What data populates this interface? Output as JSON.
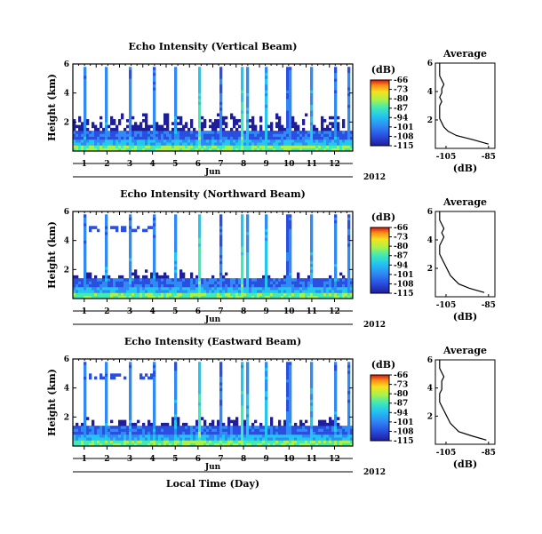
{
  "chart_data": [
    {
      "type": "heatmap",
      "title": "Echo Intensity (Vertical Beam)",
      "ylabel": "Height (km)",
      "ylim": [
        0,
        6
      ],
      "yticks": [
        "6",
        "4",
        "2"
      ],
      "x_day_ticks": [
        "1",
        "2",
        "3",
        "4",
        "5",
        "6",
        "7",
        "8",
        "9",
        "10",
        "11",
        "12"
      ],
      "month": "Jun",
      "year": "2012",
      "colorbar": {
        "title": "(dB)",
        "ticks": [
          "-66",
          "-73",
          "-80",
          "-87",
          "-94",
          "-101",
          "-108",
          "-115"
        ],
        "range": [
          -115,
          -66
        ]
      },
      "profile": {
        "title": "Average",
        "xlabel": "(dB)",
        "xticks": [
          "-105",
          "-85"
        ],
        "yticks": [
          "6",
          "4",
          "2"
        ],
        "height_km": [
          0.3,
          0.6,
          0.9,
          1.2,
          1.5,
          1.8,
          2.1,
          2.4,
          2.7,
          3.0,
          3.3,
          3.6,
          3.9,
          4.2,
          4.5,
          4.8,
          5.1,
          5.4,
          5.7,
          6.0
        ],
        "db": [
          -85,
          -92,
          -100,
          -104,
          -106,
          -107,
          -108,
          -108,
          -108,
          -108,
          -107,
          -108,
          -107,
          -107,
          -106,
          -107,
          -108,
          -108,
          -108,
          -108
        ]
      }
    },
    {
      "type": "heatmap",
      "title": "Echo Intensity (Northward Beam)",
      "ylabel": "Height (km)",
      "ylim": [
        0,
        6
      ],
      "yticks": [
        "6",
        "4",
        "2"
      ],
      "x_day_ticks": [
        "1",
        "2",
        "3",
        "4",
        "5",
        "6",
        "7",
        "8",
        "9",
        "10",
        "11",
        "12"
      ],
      "month": "Jun",
      "year": "2012",
      "colorbar": {
        "title": "(dB)",
        "ticks": [
          "-66",
          "-73",
          "-80",
          "-87",
          "-94",
          "-101",
          "-108",
          "-115"
        ],
        "range": [
          -115,
          -66
        ]
      },
      "profile": {
        "title": "Average",
        "xlabel": "(dB)",
        "xticks": [
          "-105",
          "-85"
        ],
        "yticks": [
          "6",
          "4",
          "2"
        ],
        "height_km": [
          0.3,
          0.6,
          0.9,
          1.2,
          1.5,
          1.8,
          2.1,
          2.4,
          2.7,
          3.0,
          3.3,
          3.6,
          3.9,
          4.2,
          4.5,
          4.8,
          5.1,
          5.4,
          5.7,
          6.0
        ],
        "db": [
          -87,
          -94,
          -99,
          -101,
          -103,
          -104,
          -105,
          -106,
          -107,
          -108,
          -108,
          -108,
          -107,
          -106,
          -107,
          -106,
          -107,
          -108,
          -108,
          -108
        ]
      }
    },
    {
      "type": "heatmap",
      "title": "Echo Intensity (Eastward Beam)",
      "ylabel": "Height (km)",
      "ylim": [
        0,
        6
      ],
      "yticks": [
        "6",
        "4",
        "2"
      ],
      "x_day_ticks": [
        "1",
        "2",
        "3",
        "4",
        "5",
        "6",
        "7",
        "8",
        "9",
        "10",
        "11",
        "12"
      ],
      "month": "Jun",
      "year": "2012",
      "xlabel": "Local Time (Day)",
      "colorbar": {
        "title": "(dB)",
        "ticks": [
          "-66",
          "-73",
          "-80",
          "-87",
          "-94",
          "-101",
          "-108",
          "-115"
        ],
        "range": [
          -115,
          -66
        ]
      },
      "profile": {
        "title": "Average",
        "xlabel": "(dB)",
        "xticks": [
          "-105",
          "-85"
        ],
        "yticks": [
          "6",
          "4",
          "2"
        ],
        "height_km": [
          0.3,
          0.6,
          0.9,
          1.2,
          1.5,
          1.8,
          2.1,
          2.4,
          2.7,
          3.0,
          3.3,
          3.6,
          3.9,
          4.2,
          4.5,
          4.8,
          5.1,
          5.4,
          5.7,
          6.0
        ],
        "db": [
          -86,
          -93,
          -99,
          -101,
          -103,
          -104,
          -105,
          -106,
          -107,
          -108,
          -108,
          -108,
          -107,
          -107,
          -107,
          -106,
          -107,
          -108,
          -108,
          -108
        ]
      }
    }
  ]
}
